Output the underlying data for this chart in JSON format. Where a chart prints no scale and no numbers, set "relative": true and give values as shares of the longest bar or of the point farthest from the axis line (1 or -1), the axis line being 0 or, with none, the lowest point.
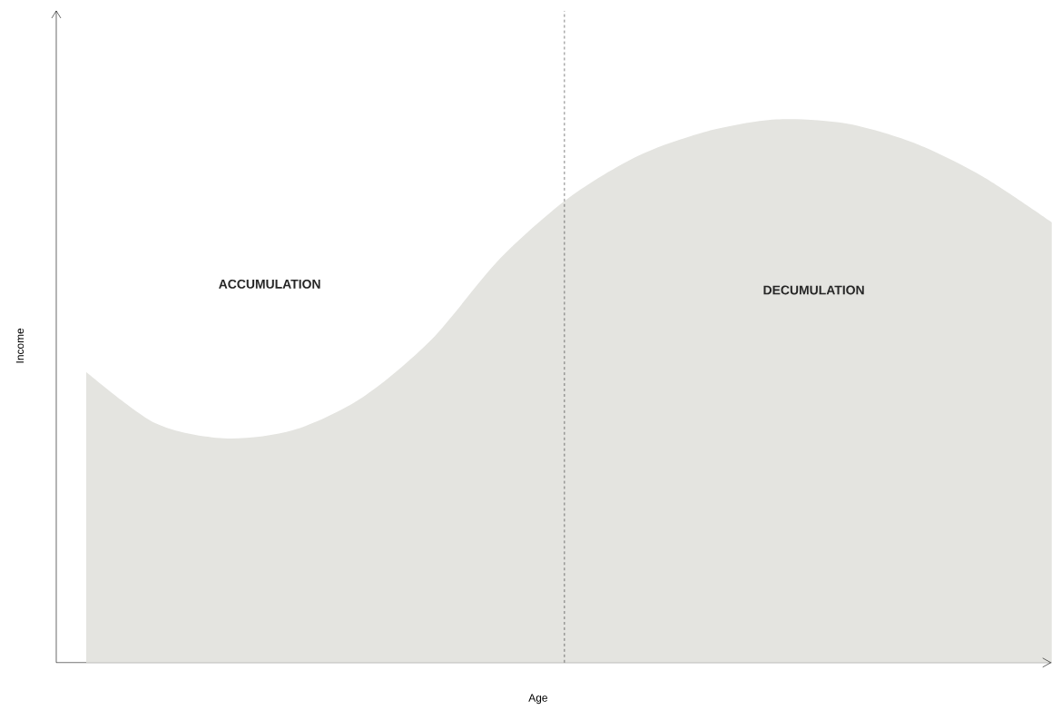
{
  "chart_data": {
    "type": "area",
    "relative": true,
    "xlabel": "Age",
    "ylabel": "Income",
    "categories": [
      null,
      null,
      null,
      null,
      null,
      null,
      null,
      null,
      null,
      null,
      null,
      null,
      null,
      null,
      null
    ],
    "values": [
      0.535,
      0.441,
      0.413,
      0.428,
      0.488,
      0.594,
      0.744,
      0.856,
      0.933,
      0.978,
      1.0,
      0.993,
      0.957,
      0.895,
      0.811
    ],
    "color": "#e4e4e0",
    "annotations": [
      "ACCUMULATION",
      "DECUMULATION"
    ]
  }
}
